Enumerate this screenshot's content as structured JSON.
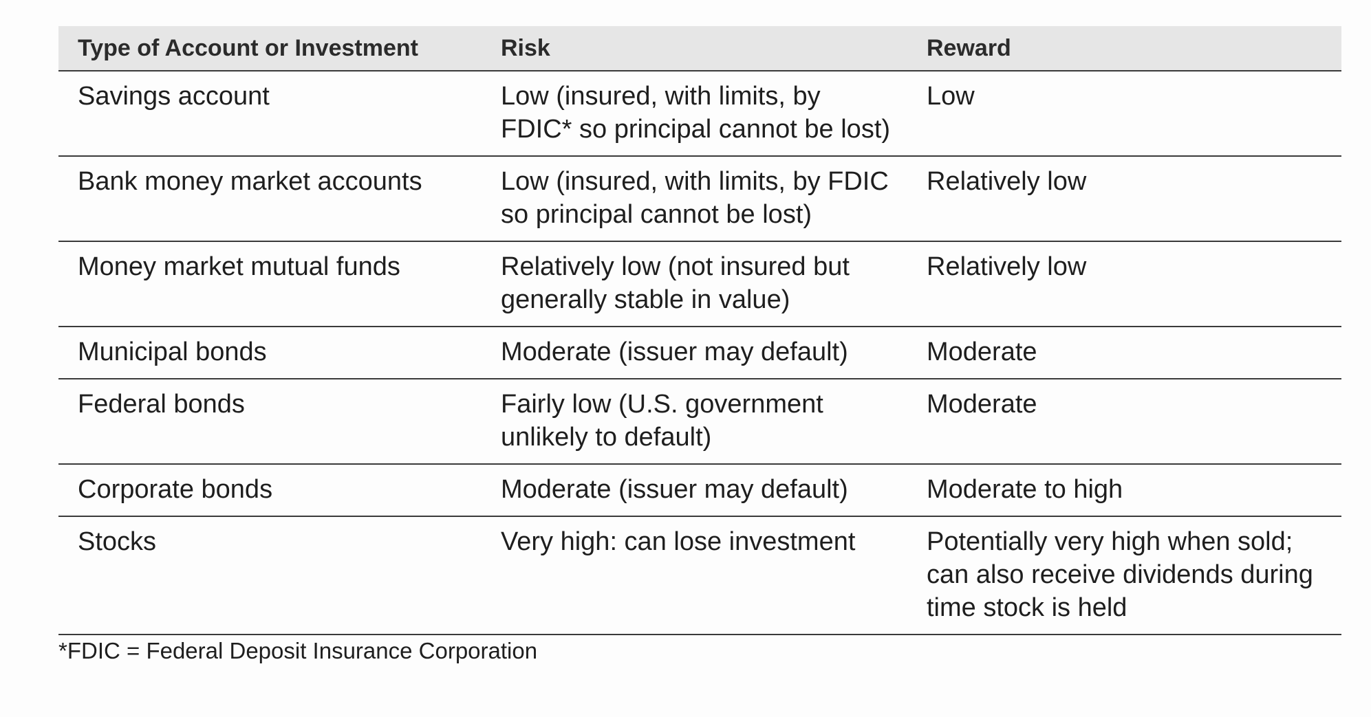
{
  "table": {
    "headers": [
      "Type of Account or Investment",
      "Risk",
      "Reward"
    ],
    "rows": [
      {
        "type": "Savings account",
        "risk": "Low (insured, with limits, by FDIC* so principal cannot be lost)",
        "reward": "Low"
      },
      {
        "type": "Bank money market accounts",
        "risk": "Low (insured, with limits, by FDIC so principal cannot be lost)",
        "reward": "Relatively low"
      },
      {
        "type": "Money market mutual funds",
        "risk": "Relatively low (not insured but generally stable in value)",
        "reward": "Relatively low"
      },
      {
        "type": "Municipal bonds",
        "risk": "Moderate (issuer may default)",
        "reward": "Moderate"
      },
      {
        "type": "Federal bonds",
        "risk": "Fairly low (U.S. government unlikely to default)",
        "reward": "Moderate"
      },
      {
        "type": "Corporate bonds",
        "risk": "Moderate (issuer may default)",
        "reward": "Moderate to high"
      },
      {
        "type": "Stocks",
        "risk": "Very high: can lose investment",
        "reward": "Potentially very high when sold; can also receive dividends during time stock is held"
      }
    ]
  },
  "footnote": "*FDIC = Federal Deposit Insurance Corporation"
}
